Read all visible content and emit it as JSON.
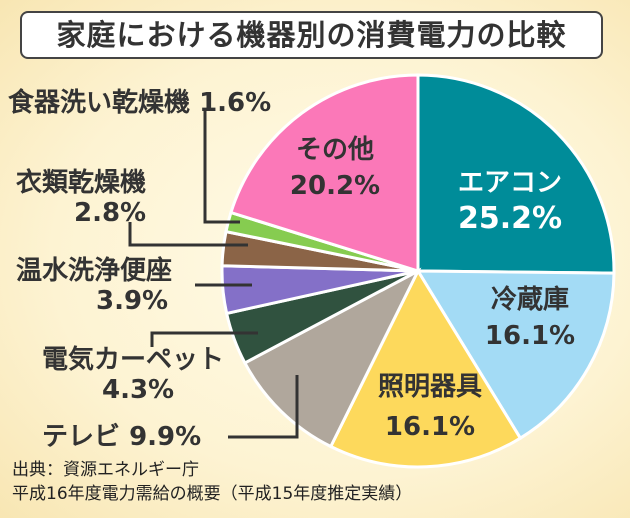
{
  "chart_data": {
    "type": "pie",
    "title": "家庭における機器別の消費電力の比較",
    "start": "top",
    "direction": "clockwise",
    "slices": [
      {
        "label": "エアコン",
        "value": 25.2,
        "display": "25.2%",
        "color": "#008c99"
      },
      {
        "label": "冷蔵庫",
        "value": 16.1,
        "display": "16.1%",
        "color": "#a3dbf5"
      },
      {
        "label": "照明器具",
        "value": 16.1,
        "display": "16.1%",
        "color": "#fdd95c"
      },
      {
        "label": "テレビ",
        "value": 9.9,
        "display": "9.9%",
        "color": "#b0a79c"
      },
      {
        "label": "電気カーペット",
        "value": 4.3,
        "display": "4.3%",
        "color": "#30523f"
      },
      {
        "label": "温水洗浄便座",
        "value": 3.9,
        "display": "3.9%",
        "color": "#8470c8"
      },
      {
        "label": "衣類乾燥機",
        "value": 2.8,
        "display": "2.8%",
        "color": "#8b6447"
      },
      {
        "label": "食器洗い乾燥機",
        "value": 1.6,
        "display": "1.6%",
        "color": "#86cc50"
      },
      {
        "label": "その他",
        "value": 20.2,
        "display": "20.2%",
        "color": "#fb78b8"
      }
    ]
  },
  "source": {
    "line1": "出典：資源エネルギー庁",
    "line2": "平成16年度電力需給の概要（平成15年度推定実績）"
  }
}
